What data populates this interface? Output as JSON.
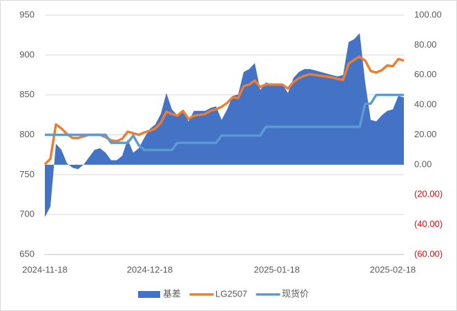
{
  "chart_data": {
    "type": "combo",
    "categories": [
      "2024-11-18",
      null,
      null,
      null,
      null,
      null,
      null,
      null,
      null,
      null,
      null,
      null,
      null,
      null,
      null,
      null,
      null,
      null,
      null,
      "2024-12-18",
      null,
      null,
      null,
      null,
      null,
      null,
      null,
      null,
      null,
      null,
      null,
      null,
      null,
      null,
      null,
      null,
      null,
      null,
      null,
      null,
      null,
      null,
      "2025-01-18",
      null,
      null,
      null,
      null,
      null,
      null,
      null,
      null,
      null,
      null,
      null,
      null,
      null,
      null,
      null,
      null,
      null,
      null,
      null,
      null,
      "2025-02-18",
      null,
      null
    ],
    "series": [
      {
        "name": "基差",
        "type": "area",
        "axis": "y2",
        "color": "#4472c4",
        "values": [
          -35,
          -28,
          14,
          10,
          1,
          -2,
          -3,
          0,
          5,
          10,
          11,
          8,
          3,
          3,
          6,
          17,
          8,
          11,
          18,
          24,
          27,
          34,
          48,
          37,
          33,
          36,
          29,
          36,
          36,
          36,
          38,
          39,
          30,
          37,
          46,
          47,
          62,
          64,
          68,
          50,
          55,
          54,
          54,
          54,
          48,
          58,
          62,
          64,
          64,
          63,
          62,
          61,
          60,
          59,
          60,
          82,
          84,
          88,
          55,
          30,
          29,
          33,
          36,
          37,
          46,
          45
        ]
      },
      {
        "name": "LG2507",
        "type": "line",
        "color": "#ed7d31",
        "values": [
          763,
          770,
          813,
          808,
          801,
          796,
          796,
          798,
          800,
          800,
          800,
          797,
          793,
          792,
          795,
          804,
          802,
          800,
          803,
          805,
          808,
          815,
          829,
          826,
          824,
          830,
          820,
          824,
          825,
          826,
          830,
          832,
          835,
          840,
          847,
          846,
          861,
          863,
          868,
          860,
          863,
          863,
          863,
          863,
          858,
          866,
          871,
          874,
          876,
          875,
          874,
          873,
          872,
          870,
          869,
          889,
          894,
          898,
          893,
          880,
          878,
          881,
          887,
          886,
          895,
          893
        ]
      },
      {
        "name": "现货价",
        "type": "line",
        "color": "#5b9bd5",
        "values": [
          800,
          800,
          800,
          800,
          800,
          800,
          800,
          800,
          800,
          800,
          800,
          800,
          790,
          790,
          790,
          790,
          799,
          787,
          781,
          781,
          781,
          781,
          781,
          781,
          790,
          790,
          790,
          790,
          790,
          790,
          790,
          790,
          799,
          799,
          799,
          799,
          799,
          799,
          799,
          799,
          810,
          810,
          810,
          810,
          810,
          810,
          810,
          810,
          810,
          810,
          810,
          810,
          810,
          810,
          810,
          810,
          810,
          810,
          839,
          839,
          850,
          850,
          850,
          850,
          850,
          850
        ]
      }
    ],
    "ylim": [
      650,
      950
    ],
    "yticks": [
      650,
      700,
      750,
      800,
      850,
      900,
      950
    ],
    "y2lim": [
      -60,
      100
    ],
    "y2ticks": [
      {
        "value": -60,
        "label": "(60.00)"
      },
      {
        "value": -40,
        "label": "(40.00)"
      },
      {
        "value": -20,
        "label": "(20.00)"
      },
      {
        "value": 0,
        "label": "0.00"
      },
      {
        "value": 20,
        "label": "20.00"
      },
      {
        "value": 40,
        "label": "40.00"
      },
      {
        "value": 60,
        "label": "60.00"
      },
      {
        "value": 80,
        "label": "80.00"
      },
      {
        "value": 100,
        "label": "100.00"
      }
    ],
    "negative_tick_color": "#ff0000",
    "grid": true,
    "legend": "bottom"
  }
}
